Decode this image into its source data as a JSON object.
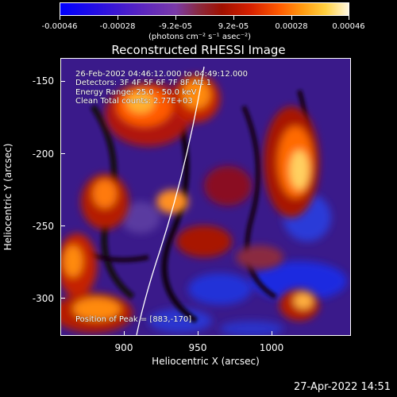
{
  "colorbar": {
    "labels": [
      "-0.00046",
      "-0.00028",
      "-9.2e-05",
      "9.2e-05",
      "0.00028",
      "0.00046"
    ],
    "unit": "(photons cm⁻² s⁻¹ asec⁻²)"
  },
  "title": "Reconstructed RHESSI Image",
  "overlay": {
    "time": "26-Feb-2002 04:46:12.000 to 04:49:12.000",
    "detectors": "Detectors: 3F 4F 5F 6F 7F 8F  Att 1",
    "energy": "Energy Range: 25.0 - 50.0 keV",
    "clean": "Clean    Total counts: 2.77E+03",
    "peak": "Position of Peak = [883,-170]"
  },
  "axes": {
    "ylabel": "Heliocentric  Y  (arcsec)",
    "xlabel": "Heliocentric X (arcsec)",
    "yticks": [
      "-150",
      "-200",
      "-250",
      "-300"
    ],
    "xticks": [
      "900",
      "950",
      "1000"
    ]
  },
  "footer": {
    "date": "27-Apr-2022 14:51"
  }
}
